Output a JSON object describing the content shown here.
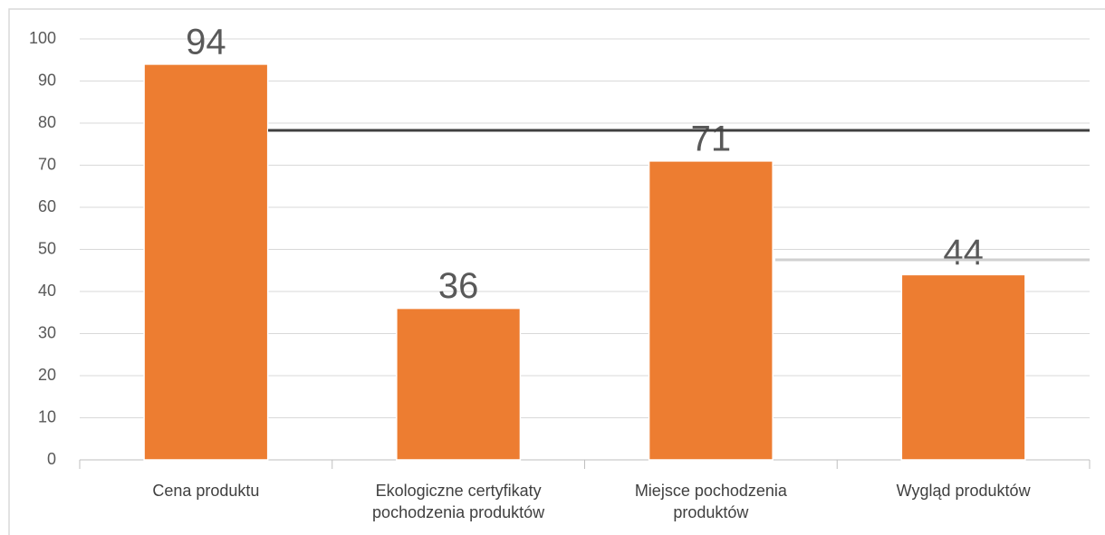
{
  "chart_data": {
    "type": "bar",
    "categories": [
      "Cena produktu",
      "Ekologiczne certyfikaty pochodzenia produktów",
      "Miejsce pochodzenia produktów",
      "Wygląd produktów"
    ],
    "values": [
      94,
      36,
      71,
      44
    ],
    "color": "#ed7d31",
    "ylim": [
      0,
      100
    ],
    "yticks": [
      0,
      10,
      20,
      30,
      40,
      50,
      60,
      70,
      80,
      90,
      100
    ],
    "grid": true
  }
}
